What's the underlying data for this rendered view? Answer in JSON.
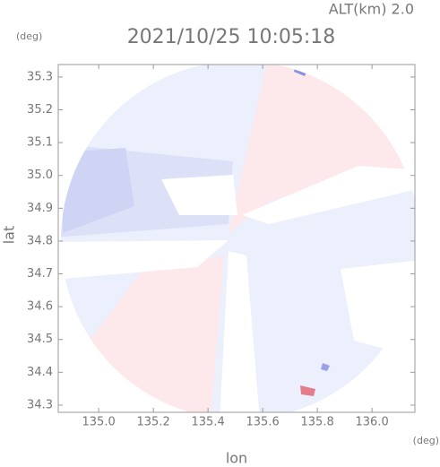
{
  "chart_data": {
    "type": "radar",
    "title": "2021/10/25 10:05:18",
    "subtitle": "ALT(km) 2.0",
    "y_unit": "(deg)",
    "x_unit": "(deg)",
    "ylabel": "lat",
    "xlabel": "lon",
    "xlim": [
      134.852,
      136.157
    ],
    "ylim": [
      34.278,
      35.338
    ],
    "xticks": [
      {
        "value": 135,
        "label": "135.0"
      },
      135.2,
      135.4,
      135.6,
      135.8,
      {
        "value": 136,
        "label": "136.0"
      }
    ],
    "yticks": [
      35.3,
      35.2,
      35.1,
      {
        "value": 35,
        "label": "35.0"
      },
      34.9,
      34.8,
      34.7,
      34.6,
      34.5,
      34.4,
      34.3
    ]
  }
}
